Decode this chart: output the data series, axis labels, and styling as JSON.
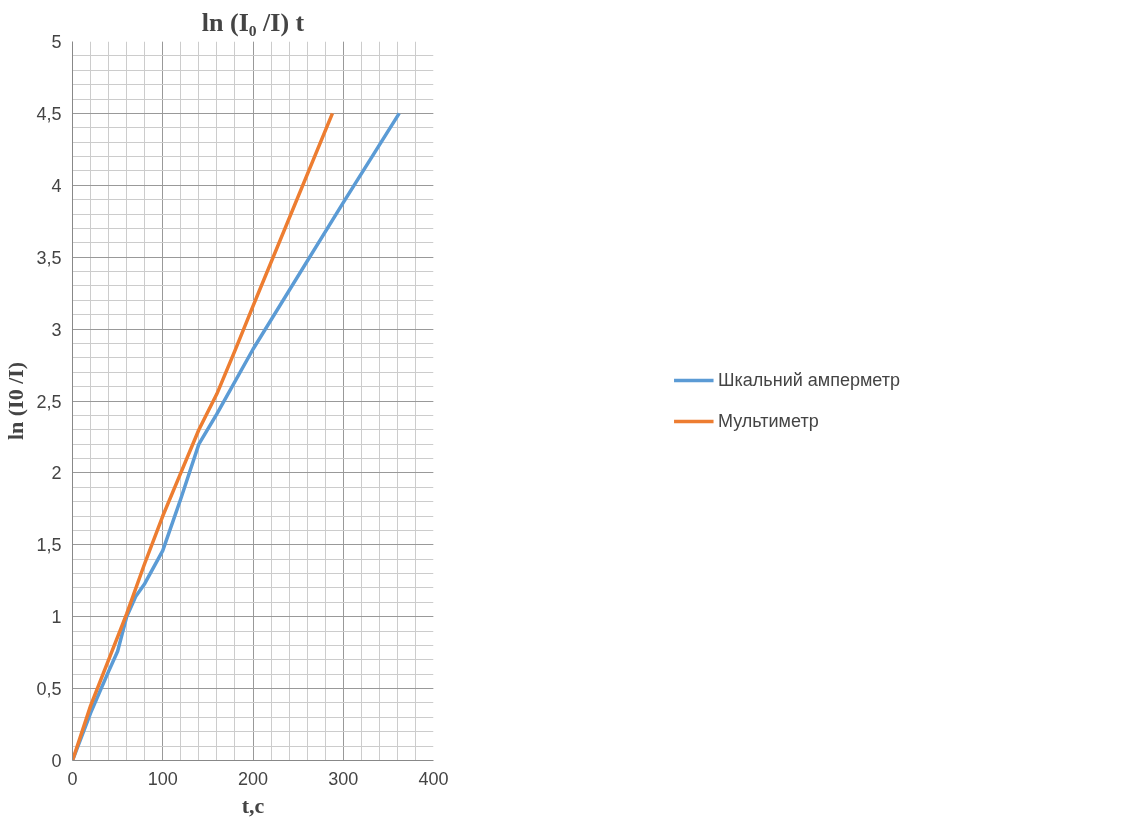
{
  "chart_data": {
    "type": "line",
    "title": "ln (I₀ /I) t",
    "xlabel": "t,c",
    "ylabel": "ln (I0 /I)",
    "xlim": [
      0,
      400
    ],
    "xticks": [
      0,
      100,
      200,
      300,
      400
    ],
    "ylim": [
      0,
      5
    ],
    "yticks": [
      0,
      {
        "value": 0.5,
        "label": "0,5"
      },
      1,
      {
        "value": 1.5,
        "label": "1,5"
      },
      2,
      {
        "value": 2.5,
        "label": "2,5"
      },
      3,
      {
        "value": 3.5,
        "label": "3,5"
      },
      4,
      {
        "value": 4.5,
        "label": "4,5"
      },
      5
    ],
    "grid": true,
    "legend": "right",
    "marker": "none",
    "line_style": "solid",
    "series": [
      {
        "name": "Шкальний амперметр",
        "color": "#5b9bd5",
        "x": [
          0,
          20,
          40,
          50,
          60,
          70,
          80,
          100,
          120,
          140,
          160,
          200,
          300,
          362
        ],
        "values": [
          0,
          0.33,
          0.62,
          0.76,
          1.0,
          1.14,
          1.23,
          1.46,
          1.82,
          2.2,
          2.41,
          2.86,
          3.88,
          4.5
        ]
      },
      {
        "name": "Мультиметр",
        "color": "#ed7d31",
        "x": [
          0,
          20,
          40,
          60,
          80,
          100,
          120,
          140,
          160,
          180,
          200,
          288
        ],
        "values": [
          0,
          0.38,
          0.7,
          1.02,
          1.37,
          1.7,
          2.0,
          2.3,
          2.55,
          2.85,
          3.16,
          4.5
        ]
      }
    ]
  }
}
